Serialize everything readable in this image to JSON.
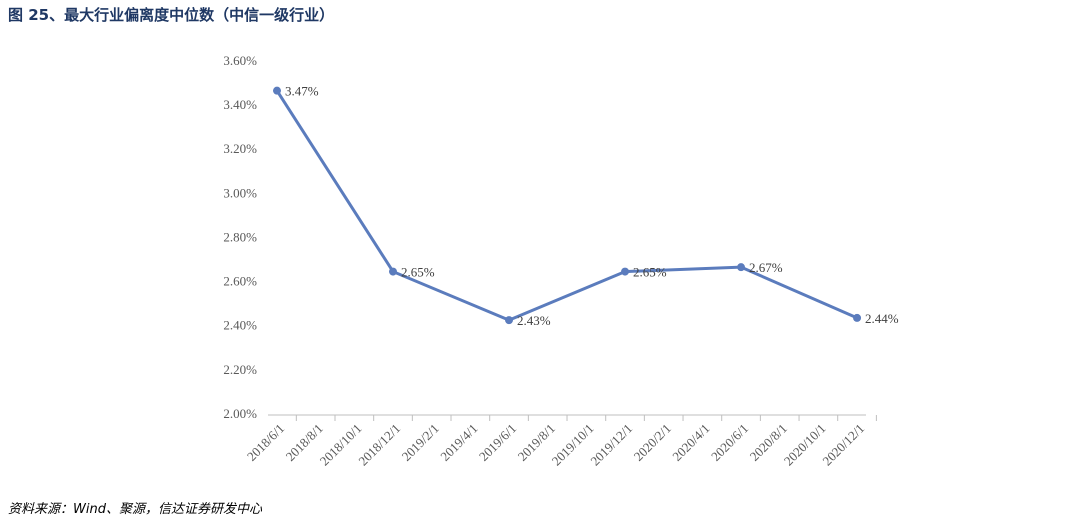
{
  "chart_data": {
    "type": "line",
    "title": "图 25、最大行业偏离度中位数（中信一级行业）",
    "source": "资料来源：Wind、聚源，信达证券研发中心",
    "xticks": [
      "2018/6/1",
      "2018/8/1",
      "2018/10/1",
      "2018/12/1",
      "2019/2/1",
      "2019/4/1",
      "2019/6/1",
      "2019/8/1",
      "2019/10/1",
      "2019/12/1",
      "2020/2/1",
      "2020/4/1",
      "2020/6/1",
      "2020/8/1",
      "2020/10/1",
      "2020/12/1"
    ],
    "x": [
      "2018/6/1",
      "2018/12/1",
      "2019/6/1",
      "2019/12/1",
      "2020/6/1",
      "2020/12/1"
    ],
    "series": [
      {
        "color": "#5b7cbd",
        "values": [
          3.47,
          2.65,
          2.43,
          2.65,
          2.67,
          2.44
        ],
        "value_labels": [
          "3.47%",
          "2.65%",
          "2.43%",
          "2.65%",
          "2.67%",
          "2.44%"
        ]
      }
    ],
    "ylim": [
      2.0,
      3.6
    ],
    "yticks": [
      {
        "value": 2.0,
        "label": "2.00%"
      },
      {
        "value": 2.2,
        "label": "2.20%"
      },
      {
        "value": 2.4,
        "label": "2.40%"
      },
      {
        "value": 2.6,
        "label": "2.60%"
      },
      {
        "value": 2.8,
        "label": "2.80%"
      },
      {
        "value": 3.0,
        "label": "3.00%"
      },
      {
        "value": 3.2,
        "label": "3.20%"
      },
      {
        "value": 3.4,
        "label": "3.40%"
      },
      {
        "value": 3.6,
        "label": "3.60%"
      }
    ],
    "grid": false
  }
}
